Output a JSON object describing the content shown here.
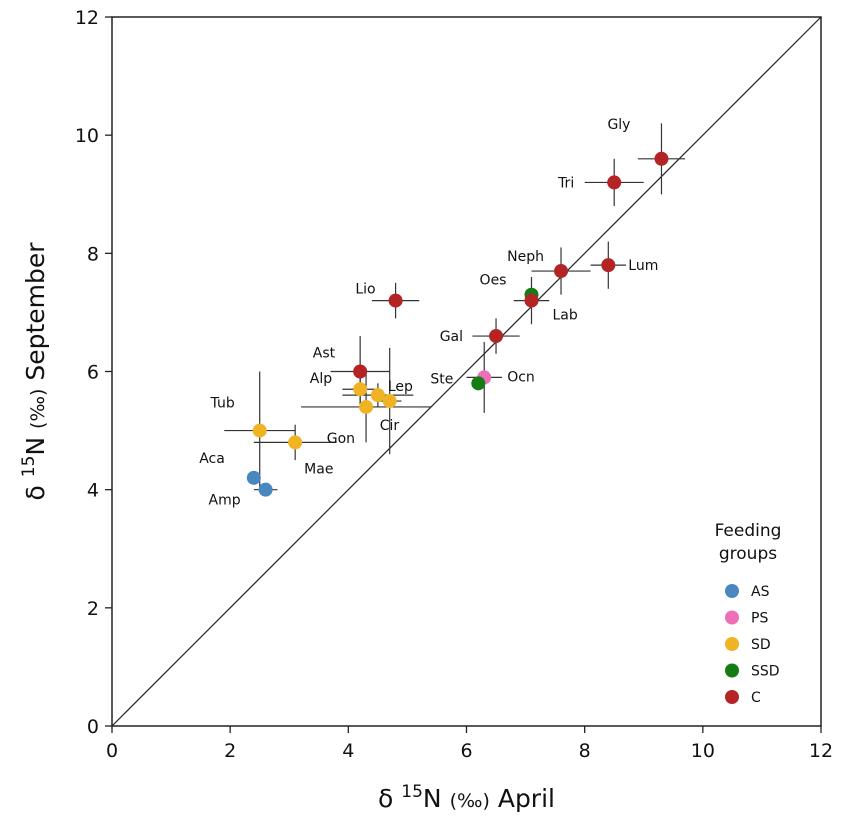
{
  "chart_data": {
    "type": "scatter",
    "xlabel": {
      "prefix": "δ ",
      "sup": "15",
      "mid": "N ",
      "unit": "(‰)",
      "suffix": " April"
    },
    "ylabel": {
      "prefix": "δ ",
      "sup": "15",
      "mid": "N ",
      "unit": "(‰)",
      "suffix": " September"
    },
    "xlim": [
      0,
      12
    ],
    "ylim": [
      0,
      12
    ],
    "xticks": [
      0,
      2,
      4,
      6,
      8,
      10,
      12
    ],
    "yticks": [
      0,
      2,
      4,
      6,
      8,
      10,
      12
    ],
    "grid": false,
    "reference_line": "1:1",
    "legend": {
      "title_lines": [
        "Feeding",
        "groups"
      ],
      "position": "bottom-right",
      "entries": [
        {
          "group": "AS",
          "color": "#4a86bf"
        },
        {
          "group": "PS",
          "color": "#ee6fb8"
        },
        {
          "group": "SD",
          "color": "#f0b323"
        },
        {
          "group": "SSD",
          "color": "#137c13"
        },
        {
          "group": "C",
          "color": "#b52424"
        }
      ]
    },
    "points": [
      {
        "label": "Aca",
        "group": "AS",
        "x": 2.4,
        "y": 4.2,
        "xerr": 0.0,
        "yerr": 0.0
      },
      {
        "label": "Amp",
        "group": "AS",
        "x": 2.6,
        "y": 4.0,
        "xerr": 0.2,
        "yerr": 0.0
      },
      {
        "label": "Tub",
        "group": "SD",
        "x": 2.5,
        "y": 5.0,
        "xerr": 0.6,
        "yerr": 1.0
      },
      {
        "label": "Mae",
        "group": "SD",
        "x": 3.1,
        "y": 4.8,
        "xerr": 0.7,
        "yerr": 0.3
      },
      {
        "label": "Alp",
        "group": "SD",
        "x": 4.2,
        "y": 5.7,
        "xerr": 0.3,
        "yerr": 0.3
      },
      {
        "label": "Gon",
        "group": "SD",
        "x": 4.3,
        "y": 5.4,
        "xerr": 1.1,
        "yerr": 0.6
      },
      {
        "label": "Lep",
        "group": "SD",
        "x": 4.5,
        "y": 5.6,
        "xerr": 0.6,
        "yerr": 0.2
      },
      {
        "label": "Cir",
        "group": "SD",
        "x": 4.7,
        "y": 5.5,
        "xerr": 0.2,
        "yerr": 0.9
      },
      {
        "label": "Ast",
        "group": "C",
        "x": 4.2,
        "y": 6.0,
        "xerr": 0.5,
        "yerr": 0.6
      },
      {
        "label": "Lio",
        "group": "C",
        "x": 4.8,
        "y": 7.2,
        "xerr": 0.4,
        "yerr": 0.3
      },
      {
        "label": "Ocn",
        "group": "PS",
        "x": 6.3,
        "y": 5.9,
        "xerr": 0.3,
        "yerr": 0.6
      },
      {
        "label": "Ste",
        "group": "SSD",
        "x": 6.2,
        "y": 5.8,
        "xerr": 0.0,
        "yerr": 0.0
      },
      {
        "label": "Gal",
        "group": "C",
        "x": 6.5,
        "y": 6.6,
        "xerr": 0.4,
        "yerr": 0.3
      },
      {
        "label": "Oes",
        "group": "SSD",
        "x": 7.1,
        "y": 7.3,
        "xerr": 0.0,
        "yerr": 0.0
      },
      {
        "label": "Lab",
        "group": "C",
        "x": 7.1,
        "y": 7.2,
        "xerr": 0.3,
        "yerr": 0.4
      },
      {
        "label": "Neph",
        "group": "C",
        "x": 7.6,
        "y": 7.7,
        "xerr": 0.5,
        "yerr": 0.4
      },
      {
        "label": "Lum",
        "group": "C",
        "x": 8.4,
        "y": 7.8,
        "xerr": 0.3,
        "yerr": 0.4
      },
      {
        "label": "Tri",
        "group": "C",
        "x": 8.5,
        "y": 9.2,
        "xerr": 0.5,
        "yerr": 0.4
      },
      {
        "label": "Gly",
        "group": "C",
        "x": 9.3,
        "y": 9.6,
        "xerr": 0.4,
        "yerr": 0.6
      }
    ]
  }
}
